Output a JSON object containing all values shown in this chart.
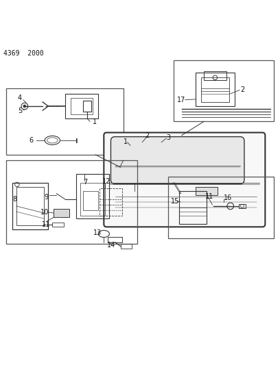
{
  "page_id": "4369  2000",
  "background_color": "#ffffff",
  "line_color": "#333333",
  "box_line_color": "#555555",
  "label_color": "#111111",
  "figsize": [
    4.08,
    5.33
  ],
  "dpi": 100,
  "page_label_fontsize": 7
}
